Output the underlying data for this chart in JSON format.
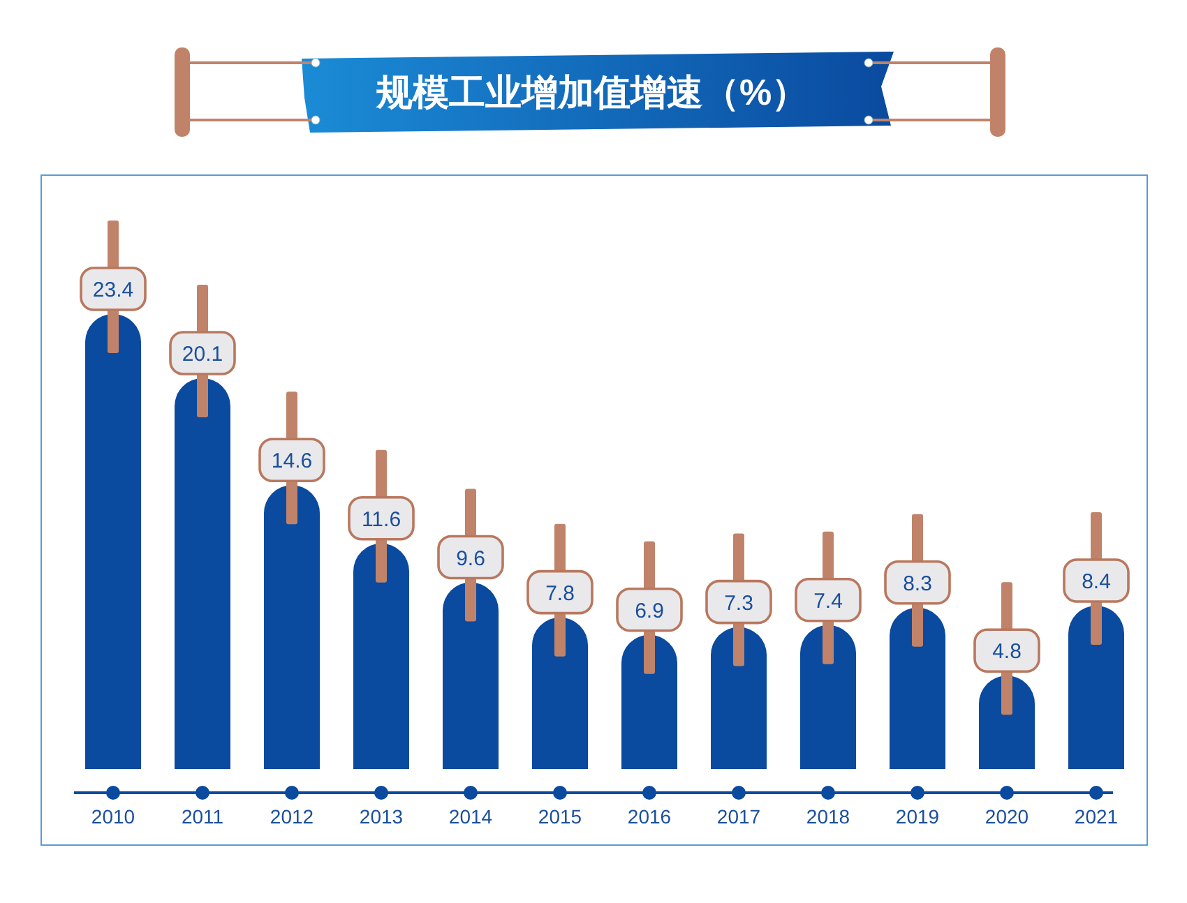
{
  "chart_data": {
    "type": "bar",
    "title": "规模工业增加值增速（%）",
    "categories": [
      "2010",
      "2011",
      "2012",
      "2013",
      "2014",
      "2015",
      "2016",
      "2017",
      "2018",
      "2019",
      "2020",
      "2021"
    ],
    "values": [
      23.4,
      20.1,
      14.6,
      11.6,
      9.6,
      7.8,
      6.9,
      7.3,
      7.4,
      8.3,
      4.8,
      8.4
    ],
    "color": "#0a4a9f",
    "data_labels": true
  }
}
